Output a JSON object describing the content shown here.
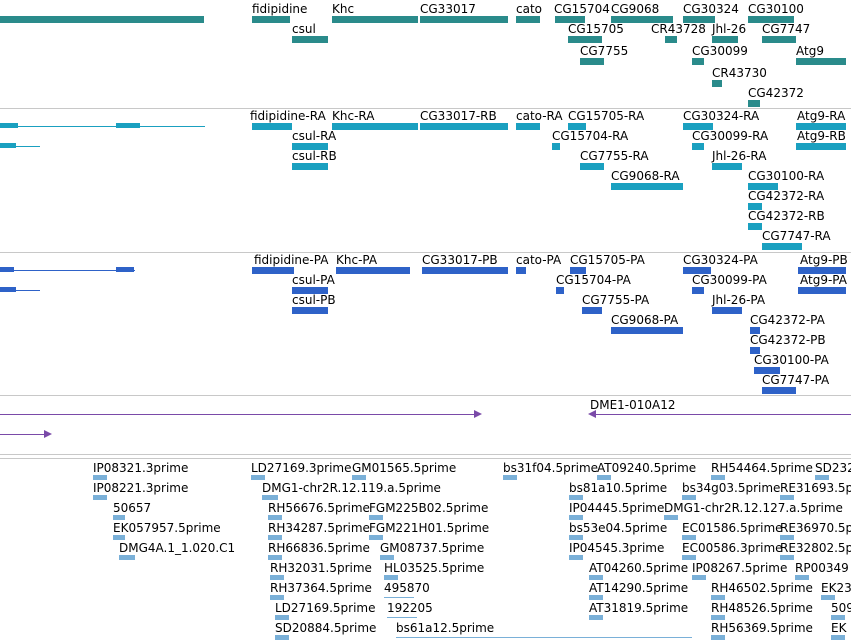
{
  "colors": {
    "gene": "#2a8b8b",
    "transcript": "#1aa0c0",
    "protein": "#2e62c8",
    "clone": "#7a4aa8",
    "est": "#7ab0d8"
  },
  "tracks": {
    "genes": [
      {
        "label": "fidipidine"
      },
      {
        "label": "csul"
      },
      {
        "label": "Khc"
      },
      {
        "label": "CG33017"
      },
      {
        "label": "cato"
      },
      {
        "label": "CG15704"
      },
      {
        "label": "CG9068"
      },
      {
        "label": "CG30324"
      },
      {
        "label": "CG30100"
      },
      {
        "label": "CG15705"
      },
      {
        "label": "CR43728"
      },
      {
        "label": "Jhl-26"
      },
      {
        "label": "CG7747"
      },
      {
        "label": "CG7755"
      },
      {
        "label": "CG30099"
      },
      {
        "label": "Atg9"
      },
      {
        "label": "CR43730"
      },
      {
        "label": "CG42372"
      }
    ],
    "transcripts": [
      {
        "label": "fidipidine-RA"
      },
      {
        "label": "Khc-RA"
      },
      {
        "label": "CG33017-RB"
      },
      {
        "label": "cato-RA"
      },
      {
        "label": "CG15705-RA"
      },
      {
        "label": "CG30324-RA"
      },
      {
        "label": "Atg9-RA"
      },
      {
        "label": "csul-RA"
      },
      {
        "label": "CG15704-RA"
      },
      {
        "label": "CG30099-RA"
      },
      {
        "label": "Atg9-RB"
      },
      {
        "label": "csul-RB"
      },
      {
        "label": "CG7755-RA"
      },
      {
        "label": "Jhl-26-RA"
      },
      {
        "label": "CG9068-RA"
      },
      {
        "label": "CG30100-RA"
      },
      {
        "label": "CG42372-RA"
      },
      {
        "label": "CG42372-RB"
      },
      {
        "label": "CG7747-RA"
      }
    ],
    "proteins": [
      {
        "label": "fidipidine-PA"
      },
      {
        "label": "Khc-PA"
      },
      {
        "label": "CG33017-PB"
      },
      {
        "label": "cato-PA"
      },
      {
        "label": "CG15705-PA"
      },
      {
        "label": "CG30324-PA"
      },
      {
        "label": "Atg9-PB"
      },
      {
        "label": "csul-PA"
      },
      {
        "label": "CG15704-PA"
      },
      {
        "label": "CG30099-PA"
      },
      {
        "label": "Atg9-PA"
      },
      {
        "label": "csul-PB"
      },
      {
        "label": "CG7755-PA"
      },
      {
        "label": "Jhl-26-PA"
      },
      {
        "label": "CG9068-PA"
      },
      {
        "label": "CG42372-PA"
      },
      {
        "label": "CG42372-PB"
      },
      {
        "label": "CG30100-PA"
      },
      {
        "label": "CG7747-PA"
      }
    ],
    "clones": [
      {
        "label": "DME1-010A12"
      }
    ],
    "ests": [
      {
        "label": "IP08321.3prime"
      },
      {
        "label": "IP08221.3prime"
      },
      {
        "label": "50657"
      },
      {
        "label": "EK057957.5prime"
      },
      {
        "label": "DMG4A.1_1.020.C1"
      },
      {
        "label": "LD27169.3prime"
      },
      {
        "label": "GM01565.5prime"
      },
      {
        "label": "DMG1-chr2R.12.119.a.5prime"
      },
      {
        "label": "RH56676.5prime"
      },
      {
        "label": "FGM225B02.5prime"
      },
      {
        "label": "RH34287.5prime"
      },
      {
        "label": "FGM221H01.5prime"
      },
      {
        "label": "RH66836.5prime"
      },
      {
        "label": "GM08737.5prime"
      },
      {
        "label": "RH32031.5prime"
      },
      {
        "label": "HL03525.5prime"
      },
      {
        "label": "RH37364.5prime"
      },
      {
        "label": "495870"
      },
      {
        "label": "LD27169.5prime"
      },
      {
        "label": "192205"
      },
      {
        "label": "SD20884.5prime"
      },
      {
        "label": "bs61a12.5prime"
      },
      {
        "label": "bs31f04.5prime"
      },
      {
        "label": "AT09240.5prime"
      },
      {
        "label": "RH54464.5prime"
      },
      {
        "label": "SD232"
      },
      {
        "label": "bs81a10.5prime"
      },
      {
        "label": "bs34g03.5prime"
      },
      {
        "label": "RE31693.5p"
      },
      {
        "label": "IP04445.5prime"
      },
      {
        "label": "DMG1-chr2R.12.127.a.5prime"
      },
      {
        "label": "bs53e04.5prime"
      },
      {
        "label": "EC01586.5prime"
      },
      {
        "label": "RE36970.5p"
      },
      {
        "label": "IP04545.3prime"
      },
      {
        "label": "EC00586.3prime"
      },
      {
        "label": "RE32802.5p"
      },
      {
        "label": "AT04260.5prime"
      },
      {
        "label": "IP08267.5prime"
      },
      {
        "label": "RP00349"
      },
      {
        "label": "AT14290.5prime"
      },
      {
        "label": "RH46502.5prime"
      },
      {
        "label": "EK23"
      },
      {
        "label": "AT31819.5prime"
      },
      {
        "label": "RH48526.5prime"
      },
      {
        "label": "509"
      },
      {
        "label": "RH56369.5prime"
      },
      {
        "label": "EK"
      }
    ]
  }
}
